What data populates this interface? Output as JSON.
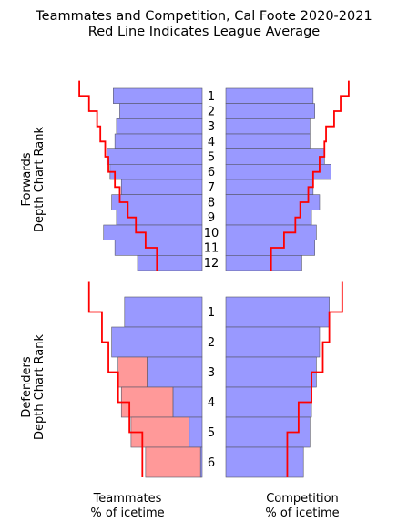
{
  "chart_data": {
    "type": "bar",
    "title_line1": "Teammates and Competition, Cal Foote 2020-2021",
    "title_line2": "Red Line Indicates League Average",
    "panels": [
      {
        "id": "forwards",
        "ylabel_line1": "Forwards",
        "ylabel_line2": "Depth Chart Rank",
        "ranks": [
          "1",
          "2",
          "3",
          "4",
          "5",
          "6",
          "7",
          "8",
          "9",
          "10",
          "11",
          "12"
        ],
        "teammates": [
          0.55,
          0.51,
          0.53,
          0.54,
          0.59,
          0.57,
          0.5,
          0.56,
          0.53,
          0.61,
          0.54,
          0.4
        ],
        "teammates_bad": [
          0,
          0,
          0,
          0,
          0,
          0,
          0,
          0,
          0,
          0,
          0,
          0
        ],
        "teammates_avg": [
          0.76,
          0.7,
          0.65,
          0.63,
          0.6,
          0.58,
          0.54,
          0.51,
          0.46,
          0.41,
          0.35,
          0.28
        ],
        "competition": [
          0.54,
          0.55,
          0.52,
          0.52,
          0.61,
          0.65,
          0.54,
          0.58,
          0.53,
          0.56,
          0.55,
          0.47
        ],
        "competition_avg": [
          0.76,
          0.71,
          0.67,
          0.62,
          0.61,
          0.58,
          0.54,
          0.51,
          0.46,
          0.43,
          0.36,
          0.28
        ]
      },
      {
        "id": "defenders",
        "ylabel_line1": "Defenders",
        "ylabel_line2": "Depth Chart Rank",
        "ranks": [
          "1",
          "2",
          "3",
          "4",
          "5",
          "6"
        ],
        "teammates": [
          0.48,
          0.56,
          0.34,
          0.18,
          0.08,
          0.01
        ],
        "teammates_bad": [
          0,
          0,
          0.18,
          0.32,
          0.36,
          0.34
        ],
        "teammates_avg": [
          0.7,
          0.62,
          0.58,
          0.52,
          0.45,
          0.37
        ],
        "competition": [
          0.64,
          0.58,
          0.56,
          0.53,
          0.52,
          0.48
        ],
        "competition_avg": [
          0.72,
          0.64,
          0.6,
          0.53,
          0.45,
          0.38
        ]
      }
    ],
    "xlabel_left_line1": "Teammates",
    "xlabel_left_line2": "% of icetime",
    "xlabel_right_line1": "Competition",
    "xlabel_right_line2": "% of icetime",
    "xlim": [
      0,
      0.8
    ],
    "colors": {
      "bar": "#9999ff",
      "bar_bad": "#ff9999",
      "avg_line": "#ff0000",
      "bar_edge": "#555566"
    }
  }
}
